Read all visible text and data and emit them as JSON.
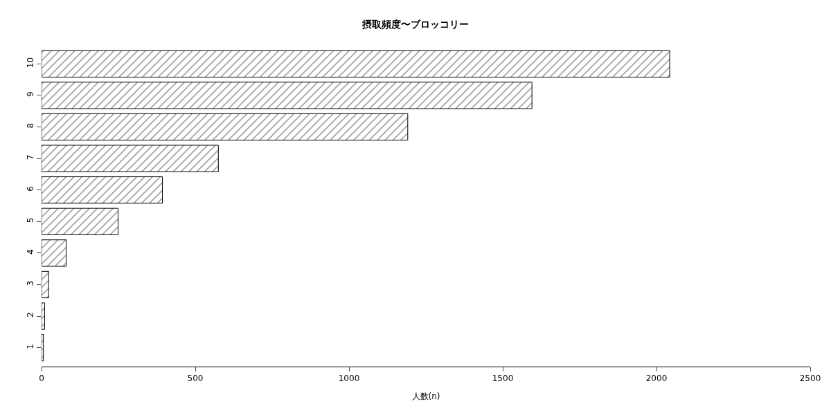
{
  "chart_data": {
    "type": "bar",
    "orientation": "horizontal",
    "title": "摂取頻度〜ブロッコリー",
    "xlabel": "人数(n)",
    "categories": [
      "10",
      "9",
      "8",
      "7",
      "6",
      "5",
      "4",
      "3",
      "2",
      "1"
    ],
    "values": [
      2043,
      1595,
      1191,
      575,
      393,
      249,
      80,
      23,
      10,
      6
    ],
    "color": "#000000",
    "xlim": [
      0,
      2500
    ],
    "xticks": [
      0,
      500,
      1000,
      1500,
      2000,
      2500
    ]
  }
}
